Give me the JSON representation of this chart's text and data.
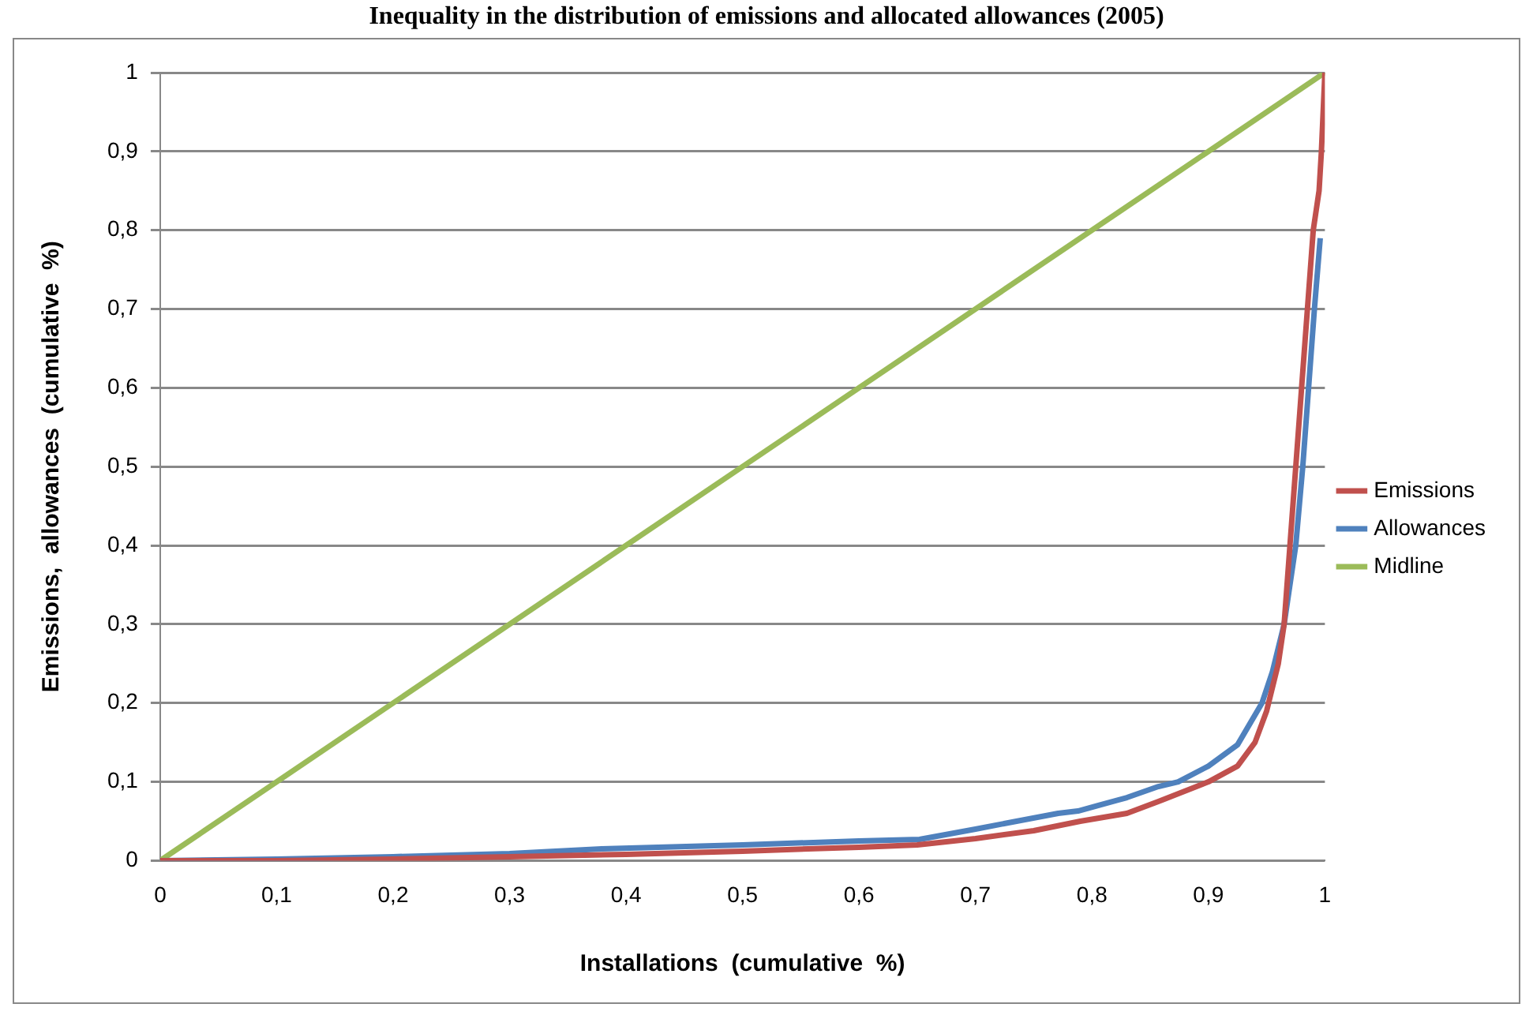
{
  "chart_data": {
    "type": "line",
    "title": "Inequality in the distribution of emissions and allocated allowances (2005)",
    "xlabel": "Installations  (cumulative  %)",
    "ylabel": "Emissions,  allowances  (cumulative  %)",
    "series": [
      {
        "name": "Emissions",
        "color": "#c0504d",
        "x": [
          0,
          0.1,
          0.2,
          0.3,
          0.4,
          0.5,
          0.6,
          0.65,
          0.7,
          0.75,
          0.79,
          0.83,
          0.857,
          0.9,
          0.925,
          0.94,
          0.95,
          0.96,
          0.965,
          0.97,
          0.975,
          0.98,
          0.985,
          0.99,
          0.995,
          0.997,
          1
        ],
        "values": [
          0,
          0,
          0.002,
          0.005,
          0.008,
          0.012,
          0.017,
          0.02,
          0.028,
          0.038,
          0.05,
          0.06,
          0.075,
          0.1,
          0.12,
          0.15,
          0.19,
          0.25,
          0.3,
          0.4,
          0.5,
          0.6,
          0.7,
          0.8,
          0.85,
          0.9,
          1
        ]
      },
      {
        "name": "Allowances",
        "color": "#4f81bd",
        "x": [
          0,
          0.1,
          0.2,
          0.3,
          0.379,
          0.5,
          0.6,
          0.652,
          0.7,
          0.771,
          0.788,
          0.83,
          0.857,
          0.874,
          0.9,
          0.925,
          0.946,
          0.955,
          0.965,
          0.975,
          0.981,
          0.991,
          0.996
        ],
        "values": [
          0,
          0.002,
          0.005,
          0.009,
          0.015,
          0.02,
          0.025,
          0.027,
          0.04,
          0.06,
          0.063,
          0.08,
          0.094,
          0.1,
          0.12,
          0.147,
          0.2,
          0.24,
          0.3,
          0.4,
          0.5,
          0.7,
          0.79
        ]
      },
      {
        "name": "Midline",
        "color": "#9bbb59",
        "x": [
          0,
          1
        ],
        "values": [
          0,
          1
        ]
      }
    ],
    "xlim": [
      0,
      1
    ],
    "ylim": [
      0,
      1
    ],
    "xticks": [
      0,
      {
        "value": 0.1,
        "label": "0,1"
      },
      {
        "value": 0.2,
        "label": "0,2"
      },
      {
        "value": 0.3,
        "label": "0,3"
      },
      {
        "value": 0.4,
        "label": "0,4"
      },
      {
        "value": 0.5,
        "label": "0,5"
      },
      {
        "value": 0.6,
        "label": "0,6"
      },
      {
        "value": 0.7,
        "label": "0,7"
      },
      {
        "value": 0.8,
        "label": "0,8"
      },
      {
        "value": 0.9,
        "label": "0,9"
      },
      1
    ],
    "yticks": [
      0,
      {
        "value": 0.1,
        "label": "0,1"
      },
      {
        "value": 0.2,
        "label": "0,2"
      },
      {
        "value": 0.3,
        "label": "0,3"
      },
      {
        "value": 0.4,
        "label": "0,4"
      },
      {
        "value": 0.5,
        "label": "0,5"
      },
      {
        "value": 0.6,
        "label": "0,6"
      },
      {
        "value": 0.7,
        "label": "0,7"
      },
      {
        "value": 0.8,
        "label": "0,8"
      },
      {
        "value": 0.9,
        "label": "0,9"
      },
      1
    ],
    "grid": "y",
    "legend": "right",
    "marker": "none",
    "line_style": "solid"
  }
}
